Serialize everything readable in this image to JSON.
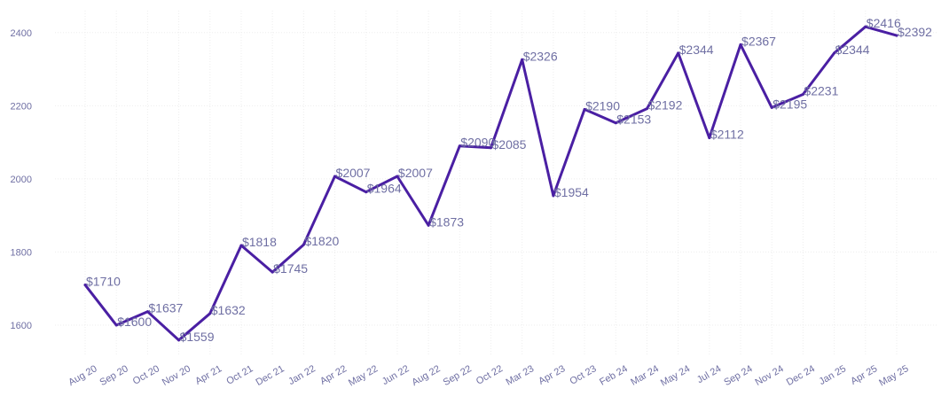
{
  "chart_data": {
    "type": "line",
    "title": "",
    "xlabel": "",
    "ylabel": "",
    "categories": [
      "Aug 20",
      "Sep 20",
      "Oct 20",
      "Nov 20",
      "Apr 21",
      "Oct 21",
      "Dec 21",
      "Jan 22",
      "Apr 22",
      "May 22",
      "Jun 22",
      "Aug 22",
      "Sep 22",
      "Oct 22",
      "Mar 23",
      "Apr 23",
      "Oct 23",
      "Feb 24",
      "Mar 24",
      "May 24",
      "Jul 24",
      "Sep 24",
      "Nov 24",
      "Dec 24",
      "Jan 25",
      "Apr 25",
      "May 25"
    ],
    "values": [
      1710,
      1600,
      1637,
      1559,
      1632,
      1818,
      1745,
      1820,
      2007,
      1964,
      2007,
      1873,
      2090,
      2085,
      2326,
      1954,
      2190,
      2153,
      2192,
      2344,
      2112,
      2367,
      2195,
      2231,
      2344,
      2416,
      2392
    ],
    "data_labels": [
      "$1710",
      "$1600",
      "$1637",
      "$1559",
      "$1632",
      "$1818",
      "$1745",
      "$1820",
      "$2007",
      "$1964",
      "$2007",
      "$1873",
      "$2090",
      "$2085",
      "$2326",
      "$1954",
      "$2190",
      "$2153",
      "$2192",
      "$2344",
      "$2112",
      "$2367",
      "$2195",
      "$2231",
      "$2344",
      "$2416",
      "$2392"
    ],
    "yticks": [
      1600,
      1800,
      2000,
      2200,
      2400
    ],
    "ylim": [
      1520,
      2460
    ],
    "grid": true,
    "legend": "none",
    "line_color": "#4a1fa3",
    "label_color": "#6f6fa3"
  }
}
